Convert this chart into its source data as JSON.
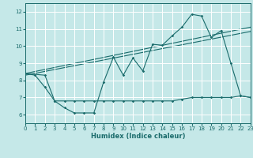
{
  "xlabel": "Humidex (Indice chaleur)",
  "bg_color": "#c5e8e8",
  "line_color": "#1a6b6b",
  "grid_color": "#ffffff",
  "xlim": [
    0,
    23
  ],
  "ylim": [
    5.5,
    12.5
  ],
  "xticks": [
    0,
    1,
    2,
    3,
    4,
    5,
    6,
    7,
    8,
    9,
    10,
    11,
    12,
    13,
    14,
    15,
    16,
    17,
    18,
    19,
    20,
    21,
    22,
    23
  ],
  "yticks": [
    6,
    7,
    8,
    9,
    10,
    11,
    12
  ],
  "main_x": [
    0,
    1,
    2,
    3,
    4,
    5,
    6,
    7,
    8,
    9,
    10,
    11,
    12,
    13,
    14,
    15,
    16,
    17,
    18,
    19,
    20,
    21,
    22,
    23
  ],
  "main_y": [
    8.4,
    8.3,
    7.6,
    6.8,
    6.4,
    6.1,
    6.1,
    6.1,
    7.9,
    9.35,
    8.3,
    9.3,
    8.55,
    10.1,
    10.05,
    10.6,
    11.1,
    11.85,
    11.75,
    10.5,
    10.9,
    9.0,
    7.1,
    7.0
  ],
  "flat_x": [
    0,
    2,
    3,
    4,
    5,
    6,
    7,
    8,
    9,
    10,
    11,
    12,
    13,
    14,
    15,
    16,
    17,
    18,
    19,
    20,
    21,
    22,
    23
  ],
  "flat_y": [
    8.4,
    8.3,
    6.8,
    6.8,
    6.8,
    6.8,
    6.8,
    6.8,
    6.8,
    6.8,
    6.8,
    6.8,
    6.8,
    6.8,
    6.8,
    6.9,
    7.0,
    7.0,
    7.0,
    7.0,
    7.0,
    7.1,
    7.0
  ],
  "trend1_x": [
    0,
    23
  ],
  "trend1_y": [
    8.3,
    10.85
  ],
  "trend2_x": [
    0,
    23
  ],
  "trend2_y": [
    8.4,
    11.1
  ]
}
